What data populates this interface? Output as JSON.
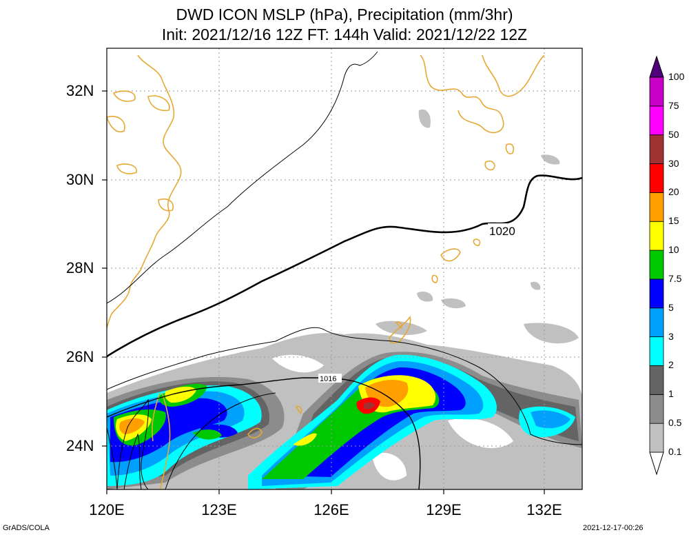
{
  "title": {
    "line1": "DWD ICON MSLP (hPa), Precipitation (mm/3hr)",
    "line2": "Init: 2021/12/16 12Z  FT: 144h  Valid: 2021/12/22 12Z"
  },
  "axes": {
    "lat_labels": [
      "32N",
      "30N",
      "28N",
      "26N",
      "24N"
    ],
    "lon_labels": [
      "120E",
      "123E",
      "126E",
      "129E",
      "132E"
    ]
  },
  "isobar_labels": [
    "1020",
    "1016"
  ],
  "legend": {
    "levels": [
      "0.1",
      "0.5",
      "1",
      "2",
      "3",
      "5",
      "7.5",
      "10",
      "15",
      "20",
      "30",
      "50",
      "75",
      "100"
    ],
    "colors": [
      "#c0c0c0",
      "#8c8c8c",
      "#646464",
      "#00ffff",
      "#00a0ff",
      "#0000ff",
      "#00c800",
      "#ffff00",
      "#ffa000",
      "#ff0000",
      "#a03232",
      "#ff00ff",
      "#c800c8",
      "#8c008c",
      "#50007a"
    ]
  },
  "footer": {
    "left": "GrADS/COLA",
    "right": "2021-12-17-00:26"
  },
  "colors": {
    "coastline": "#e6a832",
    "grid": "#999999"
  }
}
